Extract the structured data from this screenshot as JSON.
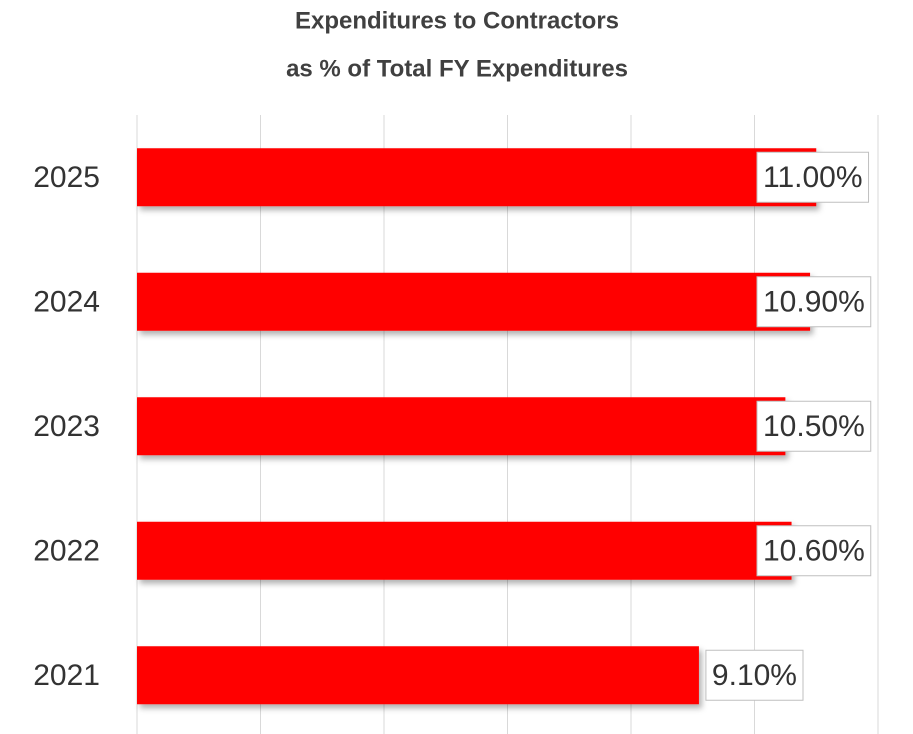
{
  "chart_data": {
    "type": "bar",
    "orientation": "horizontal",
    "title": [
      "Expenditures to Contractors",
      "as % of Total FY Expenditures"
    ],
    "categories": [
      "2025",
      "2024",
      "2023",
      "2022",
      "2021"
    ],
    "values": [
      11.0,
      10.9,
      10.5,
      10.6,
      9.1
    ],
    "value_labels": [
      "11.00%",
      "10.90%",
      "10.50%",
      "10.60%",
      "9.10%"
    ],
    "color": "#ff0000",
    "xlim": [
      0,
      12
    ],
    "xticks": [
      0,
      2,
      4,
      6,
      8,
      10,
      12
    ],
    "grid": true
  }
}
